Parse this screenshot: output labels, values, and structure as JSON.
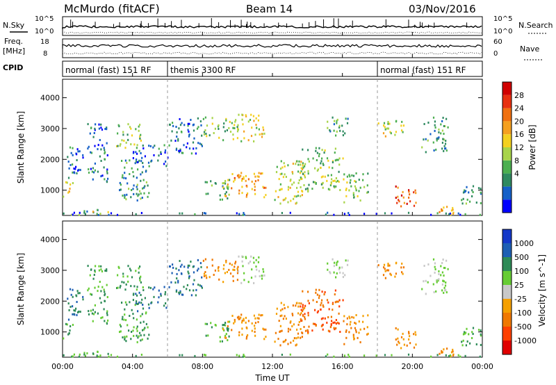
{
  "chart_data": {
    "type": "heatmap",
    "header": {
      "station": "McMurdo (fitACF)",
      "beam": "Beam 14",
      "date": "03/Nov/2016"
    },
    "aux_panels": {
      "nsky": {
        "label": "N.Sky",
        "ticks": [
          "10^5",
          "10^0"
        ]
      },
      "nsearch": {
        "label": "N.Search",
        "ticks": [
          "10^5",
          "10^0"
        ]
      },
      "freq": {
        "label_top": "Freq.",
        "label_bottom": "[MHz]",
        "ticks": [
          "18",
          "8"
        ]
      },
      "nave": {
        "label": "Nave",
        "ticks": [
          "60",
          "0"
        ]
      },
      "cpid": {
        "label": "CPID",
        "segments": [
          {
            "name": "normal (fast) 151 RF",
            "start": 0,
            "end": 6
          },
          {
            "name": "themis 3300 RF",
            "start": 6,
            "end": 18
          },
          {
            "name": "normal (fast) 151 RF",
            "start": 18,
            "end": 24
          }
        ]
      }
    },
    "x_axis": {
      "label": "Time UT",
      "range": [
        0,
        24
      ],
      "ticks": [
        0,
        4,
        8,
        12,
        16,
        20,
        24
      ],
      "tick_labels": [
        "00:00",
        "04:00",
        "08:00",
        "12:00",
        "16:00",
        "20:00",
        "00:00"
      ]
    },
    "y_axis": {
      "label": "Slant Range [km]",
      "range": [
        180,
        4600
      ],
      "ticks": [
        1000,
        2000,
        3000,
        4000
      ],
      "tick_labels": [
        "1000",
        "2000",
        "3000",
        "4000"
      ]
    },
    "power_panel": {
      "colorbar_label": "Power [dB]",
      "colorbar_ticks": [
        "4",
        "8",
        "12",
        "16",
        "20",
        "24",
        "28"
      ],
      "colors": [
        "#0000ff",
        "#1560c8",
        "#2f8a60",
        "#4caf50",
        "#a8d44a",
        "#f4d020",
        "#f5a020",
        "#f07010",
        "#e83010",
        "#d00000"
      ]
    },
    "velocity_panel": {
      "colorbar_label": "Velocity [m s^-1]",
      "colorbar_ticks": [
        "1000",
        "500",
        "100",
        "25",
        "-25",
        "-100",
        "-500",
        "-1000"
      ],
      "colors": [
        "#1438c8",
        "#1e5fb4",
        "#2e8b57",
        "#66cc33",
        "#c8c8c8",
        "#f5a000",
        "#f07800",
        "#ff4000",
        "#e00000"
      ]
    },
    "echo_regions": [
      {
        "t0": 0.0,
        "t1": 0.6,
        "r0": 700,
        "r1": 1300,
        "p": 16,
        "v": 100
      },
      {
        "t0": 0.3,
        "t1": 2.2,
        "r0": 180,
        "r1": 400,
        "p": 10,
        "v": 100
      },
      {
        "t0": 1.5,
        "t1": 2.8,
        "r0": 200,
        "r1": 350,
        "p": 18,
        "v": 100
      },
      {
        "t0": 0.2,
        "t1": 1.2,
        "r0": 1400,
        "r1": 2500,
        "p": 6,
        "v": 500
      },
      {
        "t0": 1.4,
        "t1": 2.6,
        "r0": 1300,
        "r1": 3200,
        "p": 6,
        "v": 100
      },
      {
        "t0": 3.0,
        "t1": 4.6,
        "r0": 2400,
        "r1": 3200,
        "p": 12,
        "v": 100
      },
      {
        "t0": 3.2,
        "t1": 5.0,
        "r0": 700,
        "r1": 2000,
        "p": 8,
        "v": 100
      },
      {
        "t0": 4.0,
        "t1": 6.0,
        "r0": 1700,
        "r1": 2500,
        "p": 6,
        "v": 500
      },
      {
        "t0": 6.0,
        "t1": 8.0,
        "r0": 2200,
        "r1": 3400,
        "p": 6,
        "v": 500
      },
      {
        "t0": 8.0,
        "t1": 9.5,
        "r0": 700,
        "r1": 1400,
        "p": 10,
        "v": 100
      },
      {
        "t0": 8.0,
        "t1": 10.0,
        "r0": 2600,
        "r1": 3400,
        "p": 12,
        "v": -100
      },
      {
        "t0": 9.0,
        "t1": 11.6,
        "r0": 800,
        "r1": 1600,
        "p": 20,
        "v": -100
      },
      {
        "t0": 10.0,
        "t1": 11.5,
        "r0": 2600,
        "r1": 3500,
        "p": 16,
        "v": 25
      },
      {
        "t0": 12.0,
        "t1": 14.0,
        "r0": 600,
        "r1": 2000,
        "p": 14,
        "v": -100
      },
      {
        "t0": 13.5,
        "t1": 16.0,
        "r0": 1000,
        "r1": 2400,
        "p": 12,
        "v": -500
      },
      {
        "t0": 15.0,
        "t1": 16.5,
        "r0": 2800,
        "r1": 3400,
        "p": 10,
        "v": 25
      },
      {
        "t0": 16.0,
        "t1": 17.5,
        "r0": 600,
        "r1": 1600,
        "p": 12,
        "v": -100
      },
      {
        "t0": 18.0,
        "t1": 19.5,
        "r0": 2700,
        "r1": 3300,
        "p": 14,
        "v": -100
      },
      {
        "t0": 19.0,
        "t1": 20.3,
        "r0": 500,
        "r1": 1200,
        "p": 24,
        "v": -100
      },
      {
        "t0": 20.5,
        "t1": 22.0,
        "r0": 2200,
        "r1": 3400,
        "p": 8,
        "v": 25
      },
      {
        "t0": 21.5,
        "t1": 22.5,
        "r0": 200,
        "r1": 700,
        "p": 20,
        "v": -100
      },
      {
        "t0": 22.5,
        "t1": 24.0,
        "r0": 600,
        "r1": 1200,
        "p": 8,
        "v": 100
      },
      {
        "t0": 0.0,
        "t1": 24.0,
        "r0": 180,
        "r1": 300,
        "p": 6,
        "v": 100
      }
    ]
  }
}
